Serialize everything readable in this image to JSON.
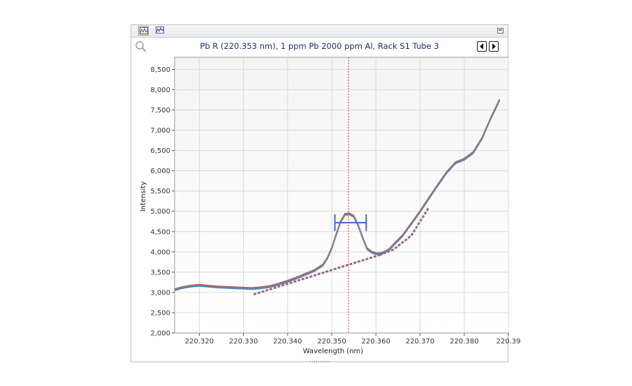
{
  "window": {
    "toolbar": [
      {
        "icon": "spectrum-view-icon",
        "active": true
      },
      {
        "icon": "spectrum-overlay-icon",
        "active": false
      }
    ],
    "restore_icon": "restore-window-icon",
    "zoom_icon": "magnifier-icon",
    "nav": {
      "prev_icon": "previous-arrow-icon",
      "next_icon": "next-arrow-icon"
    }
  },
  "chart_data": {
    "type": "line",
    "title": "Pb R (220.353 nm), 1 ppm Pb 2000 ppm Al, Rack S1 Tube 3",
    "xlabel": "Wavelength (nm)",
    "ylabel": "Intensity",
    "xlim": [
      220.3144,
      220.39
    ],
    "ylim": [
      2000,
      8800
    ],
    "x_ticks": [
      "220.320",
      "220.330",
      "220.340",
      "220.350",
      "220.360",
      "220.370",
      "220.380",
      "220.39"
    ],
    "y_ticks": [
      "2,000",
      "2,500",
      "3,000",
      "3,500",
      "4,000",
      "4,500",
      "5,000",
      "5,500",
      "6,000",
      "6,500",
      "7,000",
      "7,500",
      "8,000",
      "8,500"
    ],
    "y_tick_values": [
      2000,
      2500,
      3000,
      3500,
      4000,
      4500,
      5000,
      5500,
      6000,
      6500,
      7000,
      7500,
      8000,
      8500
    ],
    "x_tick_values": [
      220.32,
      220.33,
      220.34,
      220.35,
      220.36,
      220.37,
      220.38,
      220.39
    ],
    "grid": true,
    "series": [
      {
        "color": "#c0504d",
        "offset": 15
      },
      {
        "color": "#9bbb59",
        "offset": -10
      },
      {
        "color": "#4f81bd",
        "offset": -25
      },
      {
        "color": "#7f7f7f",
        "offset": 0
      }
    ],
    "spectrum": {
      "x": [
        220.3144,
        220.316,
        220.318,
        220.32,
        220.322,
        220.324,
        220.326,
        220.328,
        220.33,
        220.332,
        220.334,
        220.336,
        220.338,
        220.34,
        220.342,
        220.344,
        220.346,
        220.348,
        220.349,
        220.35,
        220.351,
        220.352,
        220.353,
        220.354,
        220.355,
        220.356,
        220.357,
        220.358,
        220.359,
        220.36,
        220.361,
        220.362,
        220.363,
        220.364,
        220.366,
        220.368,
        220.37,
        220.372,
        220.374,
        220.376,
        220.378,
        220.38,
        220.382,
        220.384,
        220.386,
        220.388
      ],
      "y": [
        3070,
        3120,
        3160,
        3180,
        3160,
        3140,
        3130,
        3120,
        3110,
        3100,
        3120,
        3150,
        3210,
        3280,
        3360,
        3450,
        3540,
        3680,
        3850,
        4100,
        4430,
        4750,
        4930,
        4940,
        4880,
        4650,
        4350,
        4080,
        4000,
        3960,
        3960,
        4000,
        4060,
        4180,
        4400,
        4700,
        5000,
        5330,
        5650,
        5960,
        6200,
        6290,
        6450,
        6800,
        7300,
        7750
      ]
    },
    "baseline_left": {
      "x": [
        220.3323,
        220.3608
      ],
      "y": [
        2950,
        3920
      ]
    },
    "baseline_right": {
      "x": [
        220.3608,
        220.364,
        220.368,
        220.372
      ],
      "y": [
        3920,
        4060,
        4400,
        5100
      ]
    },
    "peak_marker_x": 220.3538,
    "peak_bar": {
      "x": [
        220.3507,
        220.3578
      ],
      "y": 4720
    }
  }
}
